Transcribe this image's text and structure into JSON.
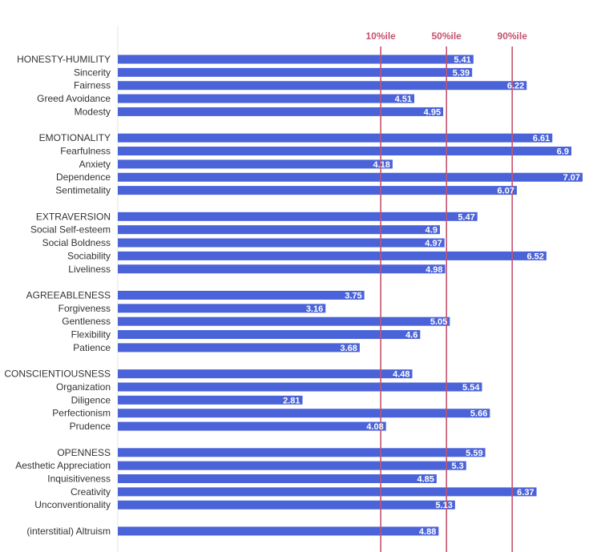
{
  "chart_data": {
    "type": "bar",
    "orientation": "horizontal",
    "bar_color": "#4b63d9",
    "ref_line_color": "#c4536e",
    "axis_line_color": "#e6e6e6",
    "xlim": [
      0,
      7.07
    ],
    "reference_lines": [
      {
        "label": "10%ile",
        "value": 4.0
      },
      {
        "label": "50%ile",
        "value": 5.0
      },
      {
        "label": "90%ile",
        "value": 6.0
      }
    ],
    "groups": [
      {
        "name": "HONESTY-HUMILITY",
        "value": 5.41,
        "facets": [
          {
            "name": "Sincerity",
            "value": 5.39
          },
          {
            "name": "Fairness",
            "value": 6.22
          },
          {
            "name": "Greed Avoidance",
            "value": 4.51
          },
          {
            "name": "Modesty",
            "value": 4.95
          }
        ]
      },
      {
        "name": "EMOTIONALITY",
        "value": 6.61,
        "facets": [
          {
            "name": "Fearfulness",
            "value": 6.9
          },
          {
            "name": "Anxiety",
            "value": 4.18
          },
          {
            "name": "Dependence",
            "value": 7.07
          },
          {
            "name": "Sentimetality",
            "value": 6.07
          }
        ]
      },
      {
        "name": "EXTRAVERSION",
        "value": 5.47,
        "facets": [
          {
            "name": "Social Self-esteem",
            "value": 4.9
          },
          {
            "name": "Social Boldness",
            "value": 4.97
          },
          {
            "name": "Sociability",
            "value": 6.52
          },
          {
            "name": "Liveliness",
            "value": 4.98
          }
        ]
      },
      {
        "name": "AGREEABLENESS",
        "value": 3.75,
        "facets": [
          {
            "name": "Forgiveness",
            "value": 3.16
          },
          {
            "name": "Gentleness",
            "value": 5.05
          },
          {
            "name": "Flexibility",
            "value": 4.6
          },
          {
            "name": "Patience",
            "value": 3.68
          }
        ]
      },
      {
        "name": "CONSCIENTIOUSNESS",
        "value": 4.48,
        "facets": [
          {
            "name": "Organization",
            "value": 5.54
          },
          {
            "name": "Diligence",
            "value": 2.81
          },
          {
            "name": "Perfectionism",
            "value": 5.66
          },
          {
            "name": "Prudence",
            "value": 4.08
          }
        ]
      },
      {
        "name": "OPENNESS",
        "value": 5.59,
        "facets": [
          {
            "name": "Aesthetic Appreciation",
            "value": 5.3
          },
          {
            "name": "Inquisitiveness",
            "value": 4.85
          },
          {
            "name": "Creativity",
            "value": 6.37
          },
          {
            "name": "Unconventionality",
            "value": 5.13
          }
        ]
      },
      {
        "name": "(interstitial) Altruism",
        "value": 4.88,
        "facets": []
      }
    ]
  }
}
